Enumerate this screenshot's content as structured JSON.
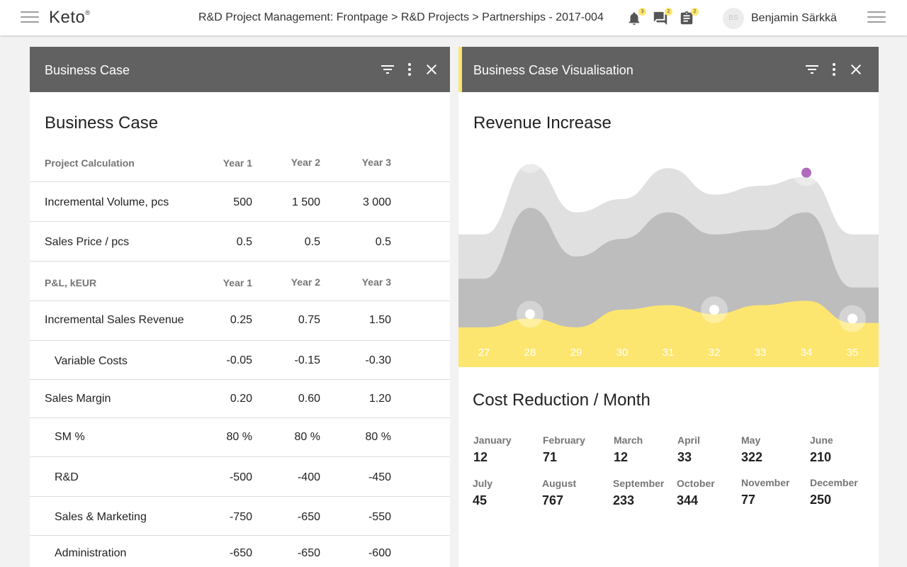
{
  "app": {
    "logo": "Keto",
    "logo_mark": "®"
  },
  "header": {
    "breadcrumb": "R&D Project Management: Frontpage > R&D Projects > Partnerships - 2017-004",
    "notifications_count": "3",
    "messages_count": "2",
    "tasks_count": "2",
    "avatar_initials": "BS",
    "user_name": "Benjamin Särkkä"
  },
  "left_panel": {
    "title": "Business Case",
    "heading": "Business Case",
    "rows": [
      {
        "label": "Project Calculation",
        "header": true,
        "y1": "Year 1",
        "y2": "Year 2",
        "y3": "Year 3"
      },
      {
        "label": "Incremental Volume, pcs",
        "y1": "500",
        "y2": "1 500",
        "y3": "3 000"
      },
      {
        "label": "Sales Price / pcs",
        "y1": "0.5",
        "y2": "0.5",
        "y3": "0.5"
      },
      {
        "label": "P&L, kEUR",
        "header": true,
        "y1": "Year 1",
        "y2": "Year 2",
        "y3": "Year 3"
      },
      {
        "label": "Incremental Sales Revenue",
        "y1": "0.25",
        "y2": "0.75",
        "y3": "1.50"
      },
      {
        "label": "Variable Costs",
        "indent": true,
        "y1": "-0.05",
        "y2": "-0.15",
        "y3": "-0.30"
      },
      {
        "label": "Sales Margin",
        "y1": "0.20",
        "y2": "0.60",
        "y3": "1.20"
      },
      {
        "label": "SM %",
        "indent": true,
        "y1": "80 %",
        "y2": "80 %",
        "y3": "80 %"
      },
      {
        "label": "R&D",
        "indent": true,
        "y1": "-500",
        "y2": "-400",
        "y3": "-450"
      },
      {
        "label": "Sales & Marketing",
        "indent": true,
        "y1": "-750",
        "y2": "-650",
        "y3": "-550"
      },
      {
        "label": "Administration",
        "indent": true,
        "y1": "-650",
        "y2": "-650",
        "y3": "-600"
      }
    ]
  },
  "right_panel": {
    "title": "Business Case Visualisation",
    "revenue_title": "Revenue Increase",
    "cost_title": "Cost Reduction / Month",
    "months": [
      {
        "name": "January",
        "value": "12"
      },
      {
        "name": "February",
        "value": "71"
      },
      {
        "name": "March",
        "value": "12"
      },
      {
        "name": "April",
        "value": "33"
      },
      {
        "name": "May",
        "value": "322"
      },
      {
        "name": "June",
        "value": "210"
      },
      {
        "name": "July",
        "value": "45"
      },
      {
        "name": "August",
        "value": "767"
      },
      {
        "name": "September",
        "value": "233"
      },
      {
        "name": "October",
        "value": "344"
      },
      {
        "name": "November",
        "value": "77"
      },
      {
        "name": "December",
        "value": "250"
      }
    ]
  },
  "chart_data": {
    "type": "area",
    "title": "Revenue Increase",
    "x": [
      "27",
      "28",
      "29",
      "30",
      "31",
      "32",
      "33",
      "34",
      "35"
    ],
    "ylim": [
      0,
      100
    ],
    "grid": false,
    "series": [
      {
        "color": "#e0e0e0",
        "values": [
          60,
          92,
          70,
          76,
          90,
          78,
          82,
          86,
          60
        ]
      },
      {
        "color": "#bdbdbd",
        "values": [
          40,
          72,
          50,
          58,
          70,
          60,
          62,
          70,
          36
        ]
      },
      {
        "color": "#fde66f",
        "values": [
          18,
          22,
          18,
          26,
          28,
          24,
          28,
          30,
          20
        ]
      }
    ],
    "colors": {
      "highlight_point": "#b06bbd",
      "point": "#ffffff"
    }
  }
}
